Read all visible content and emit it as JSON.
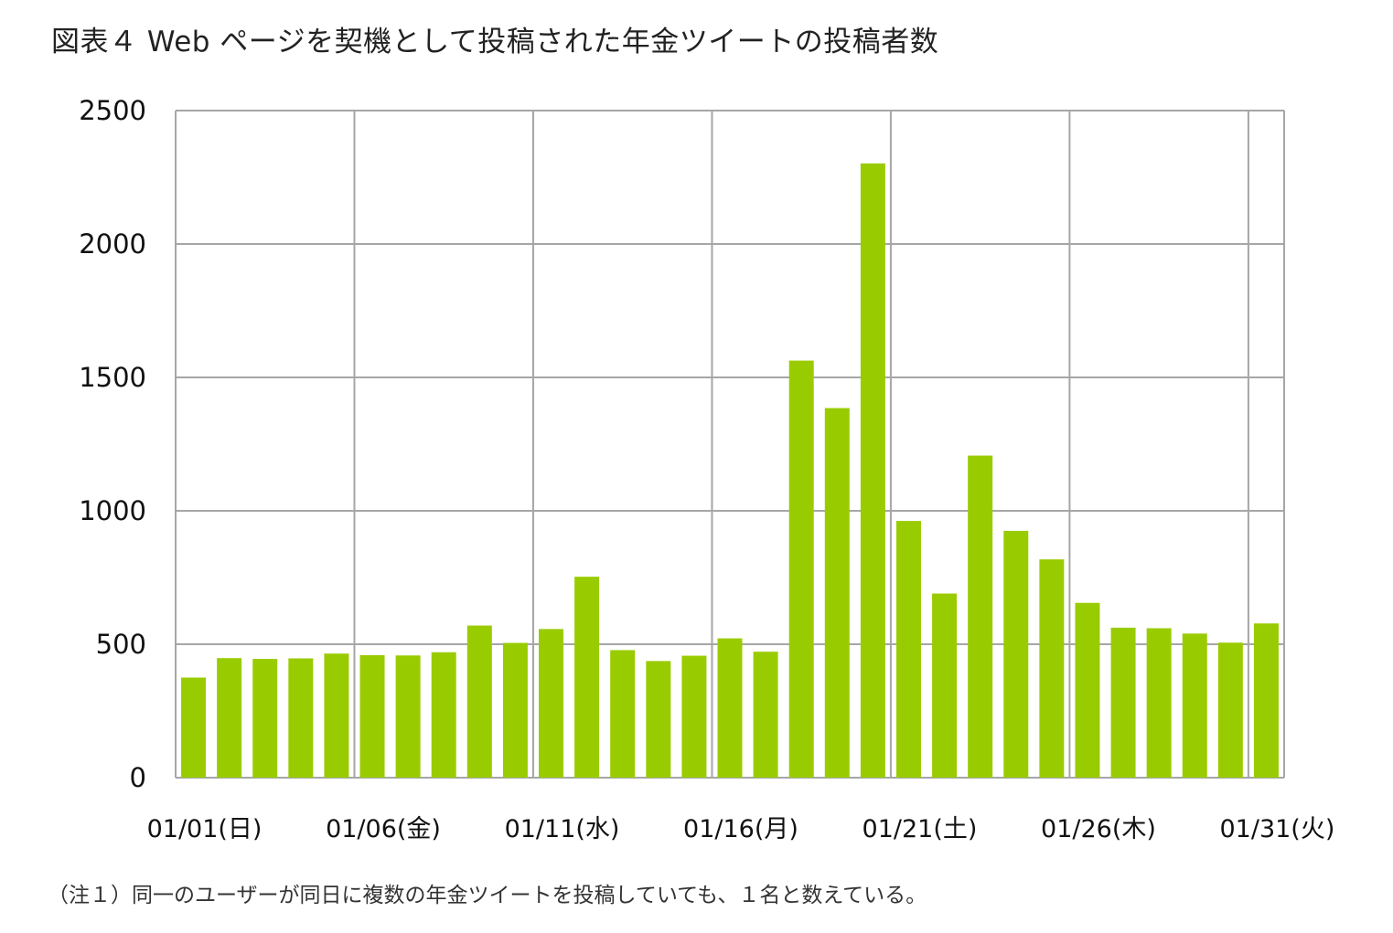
{
  "title": "図表４ Web ページを契機として投稿された年金ツイートの投稿者数",
  "note": "（注１）同一のユーザーが同日に複数の年金ツイートを投稿していても、１名と数えている。",
  "colors": {
    "bar": "#99CC00",
    "grid": "#A6A6A6",
    "axis": "#A6A6A6"
  },
  "chart_data": {
    "type": "bar",
    "title": "図表４ Web ページを契機として投稿された年金ツイートの投稿者数",
    "xlabel": "",
    "ylabel": "",
    "ylim": [
      0,
      2500
    ],
    "yticks": [
      "0",
      "500",
      "1000",
      "1500",
      "2000",
      "2500"
    ],
    "xtick_labels": [
      "01/01(日)",
      "01/06(金)",
      "01/11(水)",
      "01/16(月)",
      "01/21(土)",
      "01/26(木)",
      "01/31(火)"
    ],
    "xtick_positions": [
      1,
      6,
      11,
      16,
      21,
      26,
      31
    ],
    "grid": true,
    "legend": "none",
    "categories": [
      "01/01",
      "01/02",
      "01/03",
      "01/04",
      "01/05",
      "01/06",
      "01/07",
      "01/08",
      "01/09",
      "01/10",
      "01/11",
      "01/12",
      "01/13",
      "01/14",
      "01/15",
      "01/16",
      "01/17",
      "01/18",
      "01/19",
      "01/20",
      "01/21",
      "01/22",
      "01/23",
      "01/24",
      "01/25",
      "01/26",
      "01/27",
      "01/28",
      "01/29",
      "01/30",
      "01/31"
    ],
    "values": [
      375,
      448,
      445,
      447,
      465,
      459,
      458,
      470,
      570,
      505,
      557,
      753,
      478,
      437,
      457,
      522,
      472,
      1563,
      1385,
      2302,
      962,
      690,
      1207,
      925,
      818,
      655,
      562,
      560,
      540,
      506,
      578
    ]
  }
}
